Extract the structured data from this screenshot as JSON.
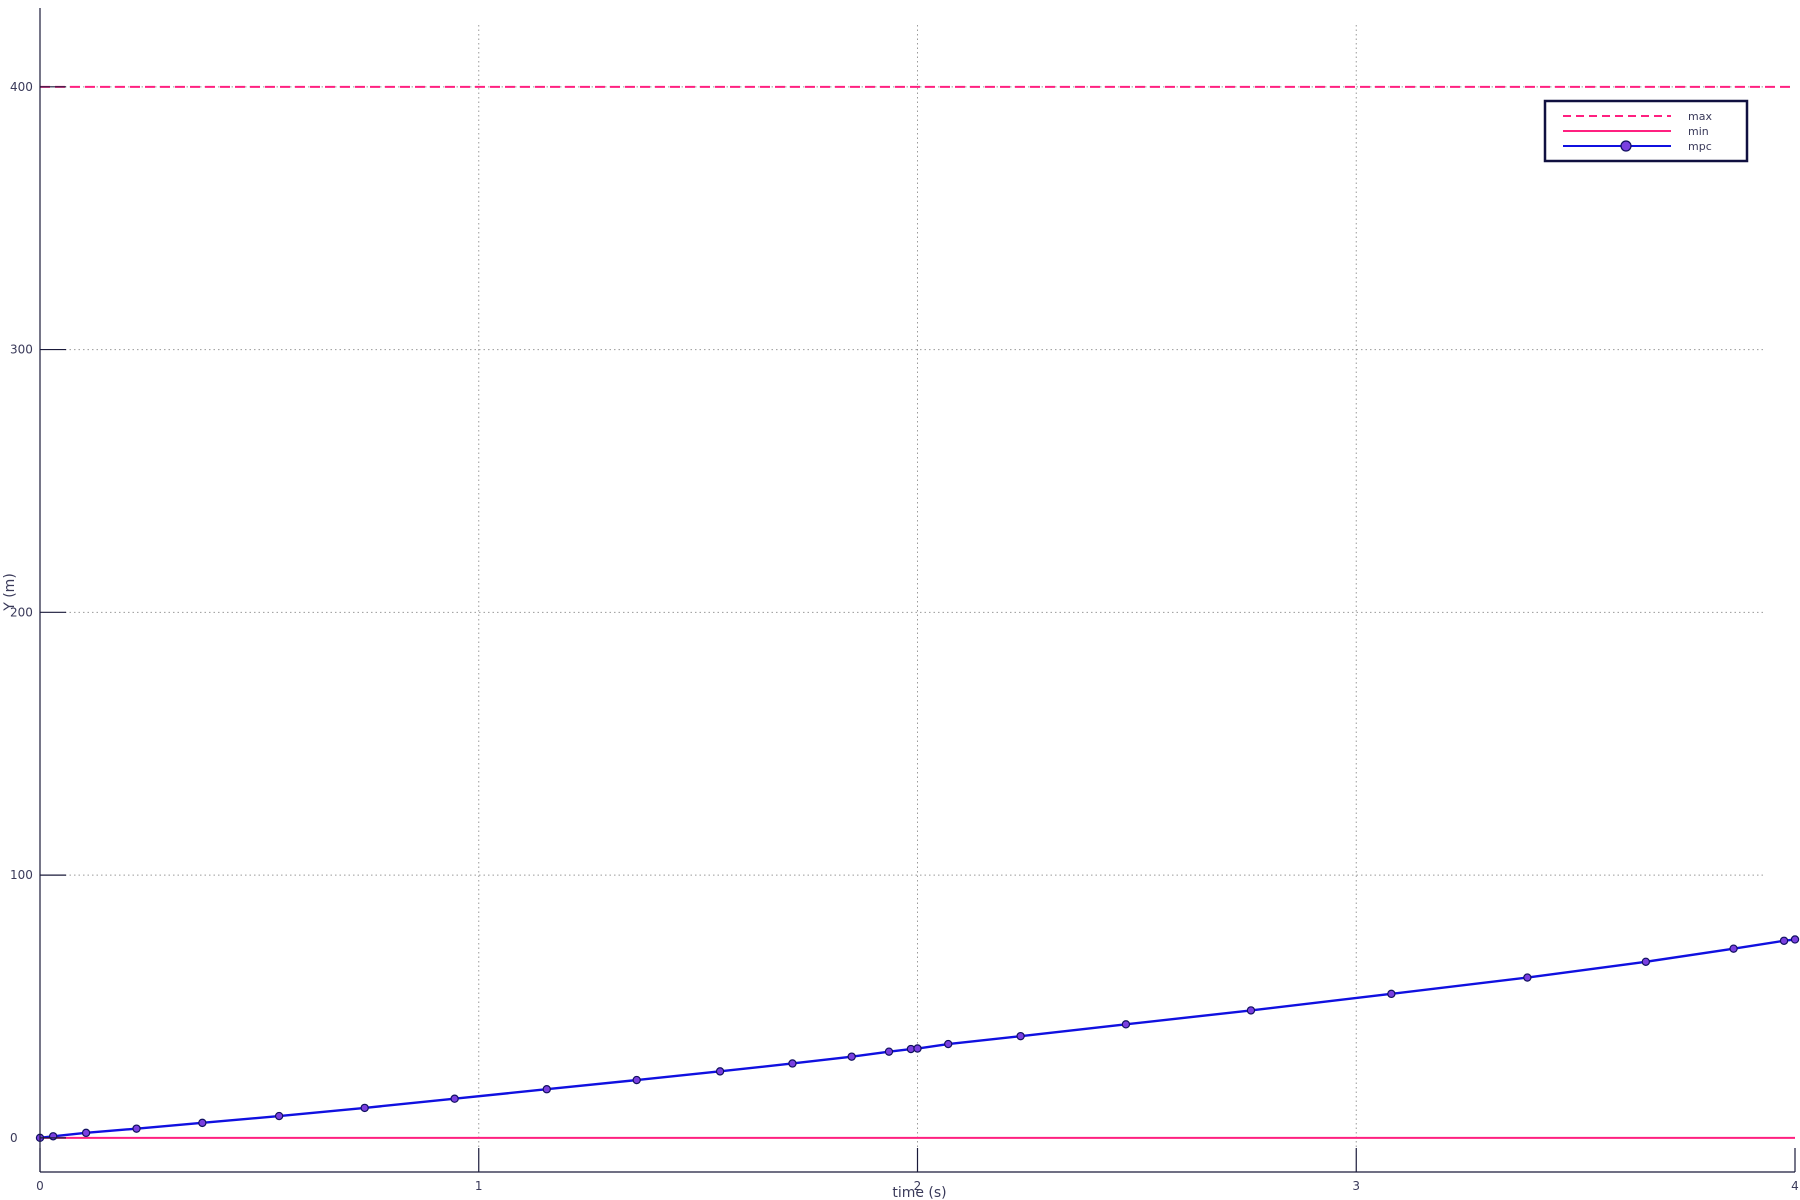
{
  "chart_data": {
    "type": "line",
    "title": "",
    "xlabel": "time (s)",
    "ylabel": "Y (m)",
    "xlim": [
      0,
      4
    ],
    "ylim": [
      -13,
      430
    ],
    "xticks": [
      0,
      1,
      2,
      3,
      4
    ],
    "yticks": [
      0,
      100,
      200,
      300,
      400
    ],
    "grid": true,
    "legend_position": "top-right",
    "colors": {
      "max": "#ff2080",
      "min": "#ff2080",
      "mpc": "#1010e0",
      "mpc_marker_fill": "#7a3fe0",
      "axis": "#1a1a3a",
      "grid": "#9a9a9a"
    },
    "series": [
      {
        "name": "max",
        "style": "dashed",
        "x": [
          0,
          4
        ],
        "y": [
          400,
          400
        ]
      },
      {
        "name": "min",
        "style": "solid",
        "x": [
          0,
          4
        ],
        "y": [
          0,
          0
        ]
      },
      {
        "name": "mpc",
        "style": "solid-marker",
        "x": [
          0,
          0.03,
          0.105,
          0.22,
          0.37,
          0.545,
          0.74,
          0.945,
          1.155,
          1.36,
          1.55,
          1.715,
          1.85,
          1.935,
          1.985,
          2.0,
          2.07,
          2.235,
          2.475,
          2.76,
          3.08,
          3.39,
          3.66,
          3.86,
          3.975,
          4.0
        ],
        "y": [
          0,
          0.6,
          1.9,
          3.5,
          5.7,
          8.3,
          11.4,
          14.9,
          18.5,
          22.0,
          25.3,
          28.3,
          30.9,
          32.8,
          33.8,
          34.0,
          35.7,
          38.7,
          43.2,
          48.5,
          54.8,
          61.0,
          67.0,
          72.0,
          75.0,
          75.5
        ]
      }
    ]
  }
}
